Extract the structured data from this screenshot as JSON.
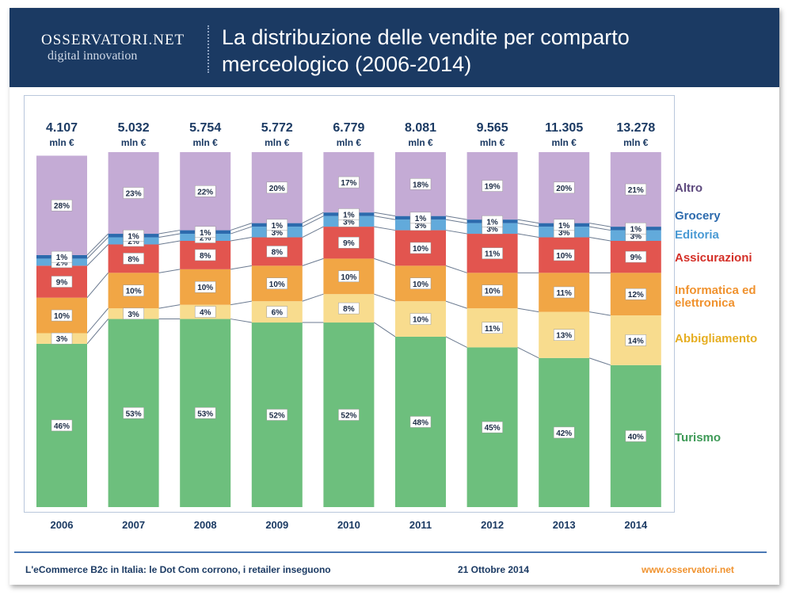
{
  "header": {
    "logo_name": "OSSERVATORI.NET",
    "logo_tagline": "digital innovation",
    "title": "La distribuzione delle vendite per comparto merceologico (2006-2014)"
  },
  "chart_data": {
    "type": "stacked-bar",
    "categories": [
      "2006",
      "2007",
      "2008",
      "2009",
      "2010",
      "2011",
      "2012",
      "2013",
      "2014"
    ],
    "ylim": [
      0,
      100
    ],
    "totals": {
      "values": [
        4107,
        5032,
        5754,
        5772,
        6779,
        8081,
        9565,
        11305,
        13278
      ],
      "value_labels": [
        "4.107",
        "5.032",
        "5.754",
        "5.772",
        "6.779",
        "8.081",
        "9.565",
        "11.305",
        "13.278"
      ],
      "unit": "mln €"
    },
    "series": [
      {
        "name": "Turismo",
        "color": "#6dbf7d",
        "label_color": "#3e9a57",
        "values": [
          46,
          53,
          53,
          52,
          52,
          48,
          45,
          42,
          40
        ],
        "value_labels": [
          "46%",
          "53%",
          "53%",
          "52%",
          "52%",
          "48%",
          "45%",
          "42%",
          "40%"
        ]
      },
      {
        "name": "Abbigliamento",
        "color": "#f8dc8e",
        "label_color": "#e6ae22",
        "values": [
          3,
          3,
          4,
          6,
          8,
          10,
          11,
          13,
          14
        ],
        "value_labels": [
          "3%",
          "3%",
          "4%",
          "6%",
          "8%",
          "10%",
          "11%",
          "13%",
          "14%"
        ]
      },
      {
        "name": "Informatica ed elettronica",
        "color": "#f1a645",
        "label_color": "#f0922e",
        "values": [
          10,
          10,
          10,
          10,
          10,
          10,
          10,
          11,
          12
        ],
        "value_labels": [
          "10%",
          "10%",
          "10%",
          "10%",
          "10%",
          "10%",
          "10%",
          "11%",
          "12%"
        ]
      },
      {
        "name": "Assicurazioni",
        "color": "#e2554f",
        "label_color": "#d42f27",
        "values": [
          9,
          8,
          8,
          8,
          9,
          10,
          11,
          10,
          9
        ],
        "value_labels": [
          "9%",
          "8%",
          "8%",
          "8%",
          "9%",
          "10%",
          "11%",
          "10%",
          "9%"
        ]
      },
      {
        "name": "Editoria",
        "color": "#62aadb",
        "label_color": "#4a9ad4",
        "values": [
          2,
          2,
          2,
          3,
          3,
          3,
          3,
          3,
          3
        ],
        "value_labels": [
          "2%",
          "2%",
          "2%",
          "3%",
          "3%",
          "3%",
          "3%",
          "3%",
          "3%"
        ]
      },
      {
        "name": "Grocery",
        "color": "#2c6aad",
        "label_color": "#2c6aad",
        "values": [
          1,
          1,
          1,
          1,
          1,
          1,
          1,
          1,
          1
        ],
        "value_labels": [
          "1%",
          "1%",
          "1%",
          "1%",
          "1%",
          "1%",
          "1%",
          "1%",
          "1%"
        ]
      },
      {
        "name": "Altro",
        "color": "#c4abd5",
        "label_color": "#5e4a7e",
        "values": [
          28,
          23,
          22,
          20,
          17,
          18,
          19,
          20,
          21
        ],
        "value_labels": [
          "28%",
          "23%",
          "22%",
          "20%",
          "17%",
          "18%",
          "19%",
          "20%",
          "21%"
        ]
      }
    ]
  },
  "footer": {
    "subject": "L'eCommerce B2c in Italia: le Dot Com corrono, i retailer inseguono",
    "date": "21 Ottobre 2014",
    "site": "www.osservatori.net"
  }
}
